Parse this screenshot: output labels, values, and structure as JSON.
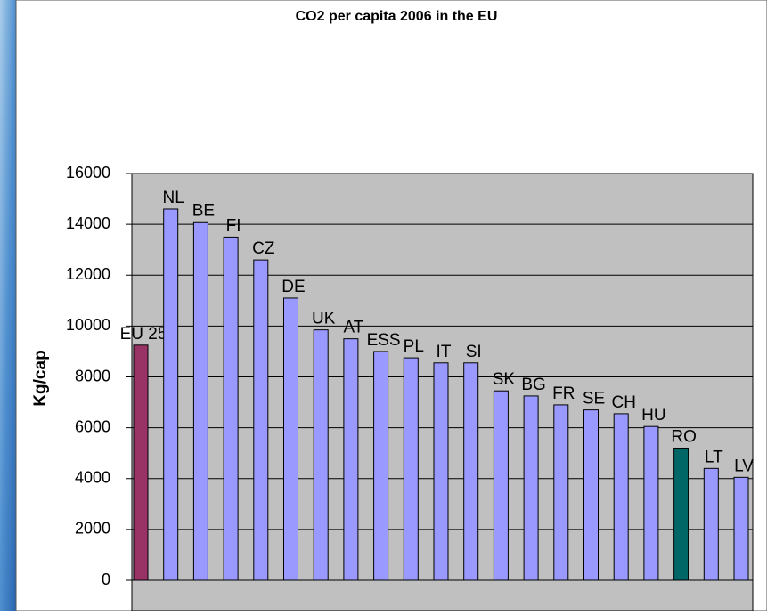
{
  "chart_data": {
    "type": "bar",
    "title": "CO2 per capita 2006 in the EU",
    "y_label": "Kg/cap",
    "categories": [
      "EU 25",
      "NL",
      "BE",
      "FI",
      "CZ",
      "DE",
      "UK",
      "AT",
      "ESS",
      "PL",
      "IT",
      "SI",
      "SK",
      "BG",
      "FR",
      "SE",
      "CH",
      "HU",
      "RO",
      "LT",
      "LV"
    ],
    "values": [
      9250,
      14600,
      14100,
      13500,
      12600,
      11100,
      9850,
      9500,
      9000,
      8750,
      8550,
      8550,
      7450,
      7250,
      6900,
      6700,
      6550,
      6050,
      5200,
      4400,
      4050
    ],
    "colors": [
      "#993366",
      "#9999ff",
      "#9999ff",
      "#9999ff",
      "#9999ff",
      "#9999ff",
      "#9999ff",
      "#9999ff",
      "#9999ff",
      "#9999ff",
      "#9999ff",
      "#9999ff",
      "#9999ff",
      "#9999ff",
      "#9999ff",
      "#9999ff",
      "#9999ff",
      "#9999ff",
      "#006666",
      "#9999ff",
      "#9999ff"
    ],
    "ylim": [
      0,
      16000
    ],
    "yticks": [
      0,
      2000,
      4000,
      6000,
      8000,
      10000,
      12000,
      14000,
      16000
    ],
    "grid": true
  }
}
